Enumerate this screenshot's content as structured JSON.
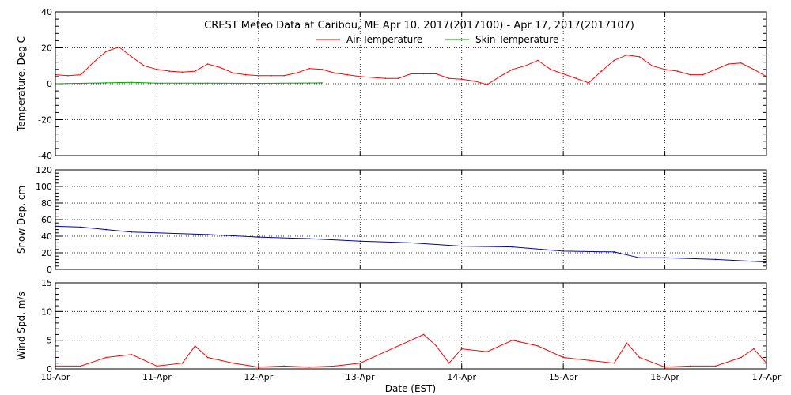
{
  "chart_data": {
    "title": "CREST Meteo Data at Caribou, ME   Apr 10, 2017(2017100) - Apr 17, 2017(2017107)",
    "xlabel": "Date (EST)",
    "x_ticks": [
      "10-Apr",
      "11-Apr",
      "12-Apr",
      "13-Apr",
      "14-Apr",
      "15-Apr",
      "16-Apr",
      "17-Apr"
    ],
    "xlim": [
      "2017-04-10",
      "2017-04-17"
    ],
    "grid": true,
    "legend": {
      "placement": "top-center"
    },
    "panels": [
      {
        "type": "line",
        "ylabel": "Temperature, Deg C",
        "ylim": [
          -40,
          40
        ],
        "y_ticks": [
          "-40",
          "-20",
          "0",
          "20",
          "40"
        ],
        "series": [
          {
            "name": "Air Temperature",
            "color": "#ff0000",
            "x": [
              "2017-04-10 00:00",
              "2017-04-10 03:00",
              "2017-04-10 06:00",
              "2017-04-10 09:00",
              "2017-04-10 12:00",
              "2017-04-10 15:00",
              "2017-04-10 18:00",
              "2017-04-10 21:00",
              "2017-04-11 00:00",
              "2017-04-11 03:00",
              "2017-04-11 06:00",
              "2017-04-11 09:00",
              "2017-04-11 12:00",
              "2017-04-11 15:00",
              "2017-04-11 18:00",
              "2017-04-11 21:00",
              "2017-04-12 00:00",
              "2017-04-12 03:00",
              "2017-04-12 06:00",
              "2017-04-12 09:00",
              "2017-04-12 12:00",
              "2017-04-12 15:00",
              "2017-04-12 18:00",
              "2017-04-12 21:00",
              "2017-04-13 00:00",
              "2017-04-13 03:00",
              "2017-04-13 06:00",
              "2017-04-13 09:00",
              "2017-04-13 12:00",
              "2017-04-13 15:00",
              "2017-04-13 18:00",
              "2017-04-13 21:00",
              "2017-04-14 00:00",
              "2017-04-14 03:00",
              "2017-04-14 06:00",
              "2017-04-14 09:00",
              "2017-04-14 12:00",
              "2017-04-14 15:00",
              "2017-04-14 18:00",
              "2017-04-14 21:00",
              "2017-04-15 00:00",
              "2017-04-15 03:00",
              "2017-04-15 06:00",
              "2017-04-15 09:00",
              "2017-04-15 12:00",
              "2017-04-15 15:00",
              "2017-04-15 18:00",
              "2017-04-15 21:00",
              "2017-04-16 00:00",
              "2017-04-16 03:00",
              "2017-04-16 06:00",
              "2017-04-16 09:00",
              "2017-04-16 12:00",
              "2017-04-16 15:00",
              "2017-04-16 18:00",
              "2017-04-16 21:00",
              "2017-04-17 00:00"
            ],
            "y": [
              5,
              4.5,
              5,
              12,
              18,
              20.5,
              15,
              10,
              8,
              7,
              6.5,
              7,
              11,
              9,
              6,
              5,
              4.5,
              4.5,
              4.5,
              6,
              8.5,
              8,
              6,
              5,
              4,
              3.5,
              3,
              3,
              5.5,
              5.5,
              5.5,
              3,
              2.5,
              1.5,
              -0.5,
              4,
              8,
              10,
              13,
              8,
              5.5,
              3,
              0.5,
              7,
              13,
              16,
              15,
              10,
              8,
              7,
              5,
              5,
              8,
              11,
              11.5,
              8,
              4
            ]
          },
          {
            "name": "Skin Temperature",
            "color": "#00aa00",
            "x": [
              "2017-04-10 00:00",
              "2017-04-10 12:00",
              "2017-04-10 18:00",
              "2017-04-11 00:00",
              "2017-04-11 12:00",
              "2017-04-12 00:00",
              "2017-04-12 12:00",
              "2017-04-12 15:00"
            ],
            "y": [
              0,
              0.5,
              0.8,
              0.3,
              0.3,
              0.2,
              0.4,
              0.5
            ]
          }
        ]
      },
      {
        "type": "line",
        "ylabel": "Snow Dep, cm",
        "ylim": [
          0,
          120
        ],
        "y_ticks": [
          "0",
          "20",
          "40",
          "60",
          "80",
          "100",
          "120"
        ],
        "series": [
          {
            "color": "#0000aa",
            "x": [
              "2017-04-10 00:00",
              "2017-04-10 06:00",
              "2017-04-10 12:00",
              "2017-04-10 18:00",
              "2017-04-11 00:00",
              "2017-04-11 12:00",
              "2017-04-12 00:00",
              "2017-04-12 12:00",
              "2017-04-13 00:00",
              "2017-04-13 12:00",
              "2017-04-14 00:00",
              "2017-04-14 12:00",
              "2017-04-15 00:00",
              "2017-04-15 12:00",
              "2017-04-15 18:00",
              "2017-04-16 00:00",
              "2017-04-16 12:00",
              "2017-04-17 00:00"
            ],
            "y": [
              52,
              51,
              48,
              45,
              44,
              42,
              39,
              37,
              34,
              32,
              28,
              27,
              22,
              21,
              14,
              14,
              12,
              9
            ]
          }
        ]
      },
      {
        "type": "line",
        "ylabel": "Wind Spd, m/s",
        "ylim": [
          0,
          15
        ],
        "y_ticks": [
          "0",
          "5",
          "10",
          "15"
        ],
        "series": [
          {
            "color": "#ff0000",
            "x": [
              "2017-04-10 00:00",
              "2017-04-10 06:00",
              "2017-04-10 12:00",
              "2017-04-10 18:00",
              "2017-04-11 00:00",
              "2017-04-11 06:00",
              "2017-04-11 09:00",
              "2017-04-11 12:00",
              "2017-04-11 18:00",
              "2017-04-12 00:00",
              "2017-04-12 06:00",
              "2017-04-12 12:00",
              "2017-04-12 18:00",
              "2017-04-13 00:00",
              "2017-04-13 06:00",
              "2017-04-13 12:00",
              "2017-04-13 15:00",
              "2017-04-13 18:00",
              "2017-04-13 21:00",
              "2017-04-14 00:00",
              "2017-04-14 06:00",
              "2017-04-14 12:00",
              "2017-04-14 18:00",
              "2017-04-15 00:00",
              "2017-04-15 06:00",
              "2017-04-15 12:00",
              "2017-04-15 15:00",
              "2017-04-15 18:00",
              "2017-04-16 00:00",
              "2017-04-16 06:00",
              "2017-04-16 12:00",
              "2017-04-16 18:00",
              "2017-04-16 21:00",
              "2017-04-17 00:00"
            ],
            "y": [
              0.5,
              0.5,
              2,
              2.5,
              0.5,
              1,
              4,
              2,
              1,
              0.3,
              0.5,
              0.3,
              0.5,
              1,
              3,
              5,
              6,
              4,
              1,
              3.5,
              3,
              5,
              4,
              2,
              1.5,
              1,
              4.5,
              2,
              0.3,
              0.5,
              0.5,
              2,
              3.5,
              1
            ]
          }
        ]
      }
    ]
  }
}
